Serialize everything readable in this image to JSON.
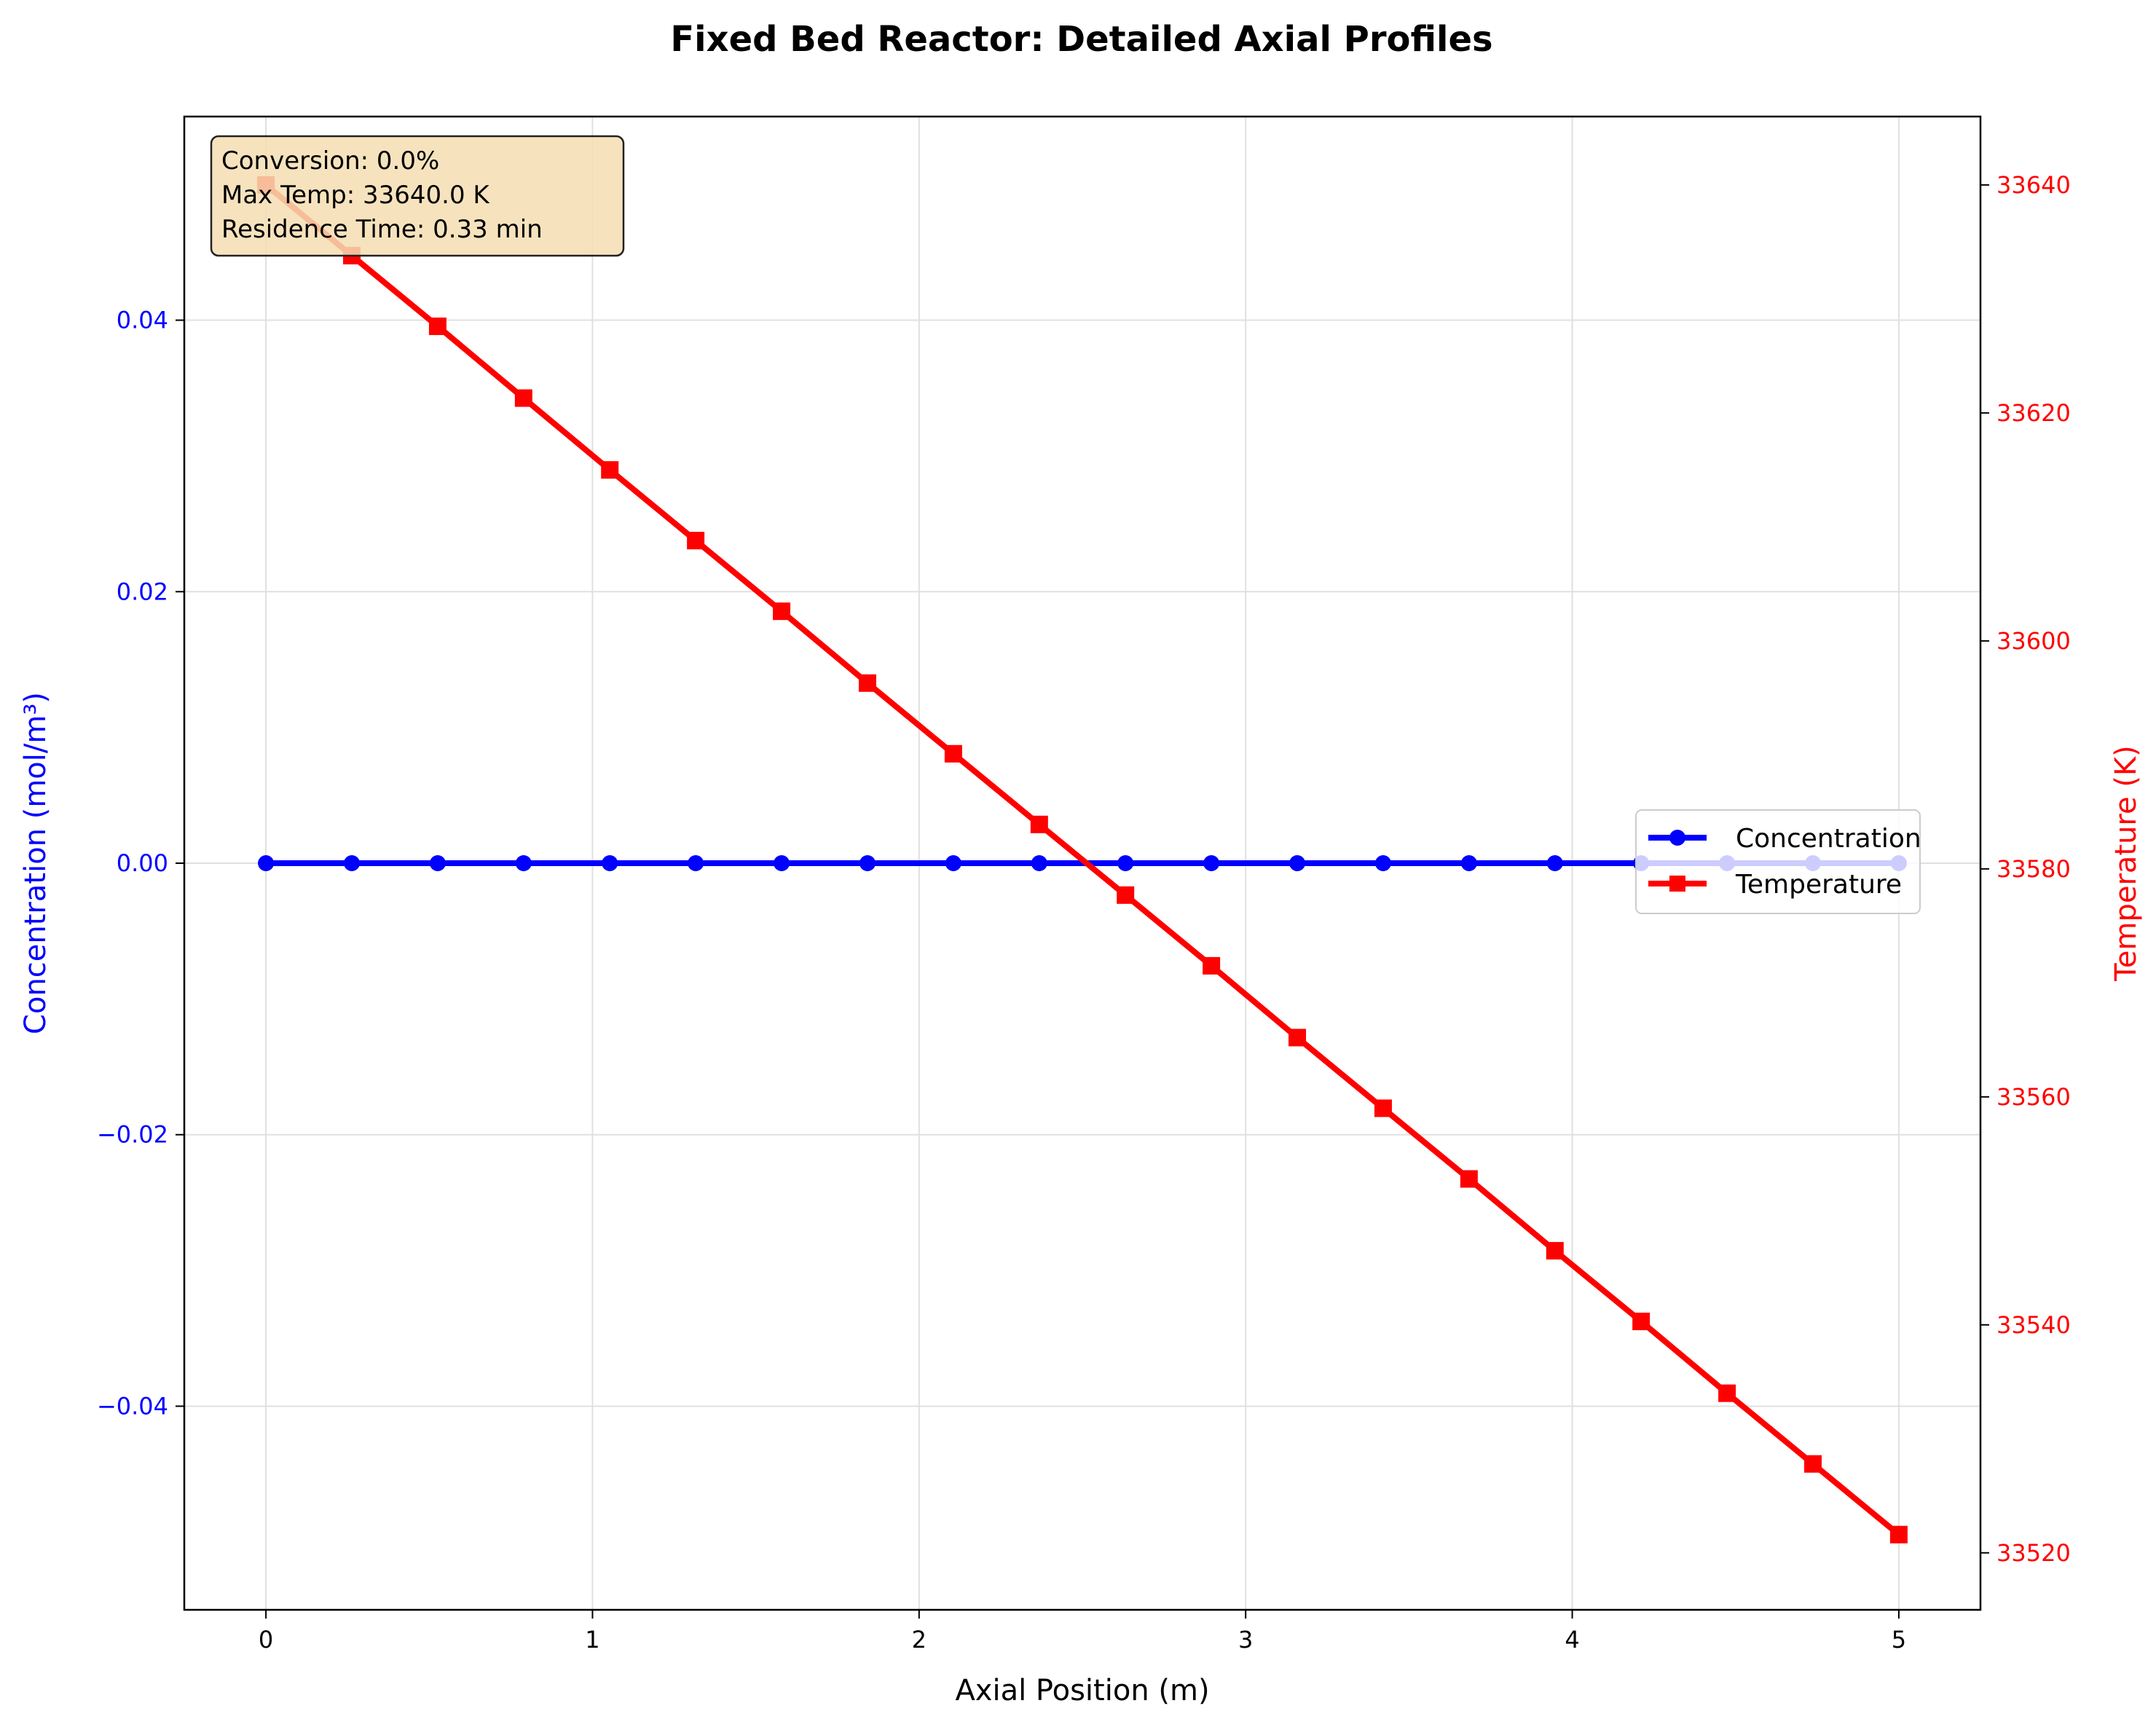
{
  "chart_data": {
    "type": "line",
    "title": "Fixed Bed Reactor: Detailed Axial Profiles",
    "xlabel": "Axial Position (m)",
    "ylabel_left": "Concentration (mol/m³)",
    "ylabel_right": "Temperature (K)",
    "xlim": [
      -0.25,
      5.25
    ],
    "ylim_left": [
      -0.055,
      0.055
    ],
    "ylim_right": [
      33515,
      33646
    ],
    "x_ticks": [
      "0",
      "1",
      "2",
      "3",
      "4",
      "5"
    ],
    "y_left_ticks": [
      "−0.04",
      "−0.02",
      "0.00",
      "0.02",
      "0.04"
    ],
    "y_right_ticks": [
      "33520",
      "33540",
      "33560",
      "33580",
      "33600",
      "33620",
      "33640"
    ],
    "grid": true,
    "legend_position": "center-right",
    "x": [
      0,
      0.263,
      0.526,
      0.789,
      1.053,
      1.316,
      1.579,
      1.842,
      2.105,
      2.368,
      2.632,
      2.895,
      3.158,
      3.421,
      3.684,
      3.947,
      4.211,
      4.474,
      4.737,
      5.0
    ],
    "series": [
      {
        "name": "Concentration",
        "axis": "left",
        "color": "#0000ff",
        "marker": "circle",
        "values": [
          0,
          0,
          0,
          0,
          0,
          0,
          0,
          0,
          0,
          0,
          0,
          0,
          0,
          0,
          0,
          0,
          0,
          0,
          0,
          0
        ]
      },
      {
        "name": "Temperature",
        "axis": "right",
        "color": "#ff0000",
        "marker": "square",
        "values": [
          33640.0,
          33633.8,
          33627.6,
          33621.3,
          33615.0,
          33608.8,
          33602.6,
          33596.3,
          33590.1,
          33583.9,
          33577.7,
          33571.5,
          33565.2,
          33559.0,
          33552.8,
          33546.5,
          33540.3,
          33534.0,
          33527.8,
          33521.6
        ]
      }
    ],
    "annotation": [
      "Conversion: 0.0%",
      "Max Temp: 33640.0 K",
      "Residence Time: 0.33 min"
    ]
  },
  "colors": {
    "left_axis": "#0000ff",
    "right_axis": "#ff0000",
    "grid": "#e0e0e0",
    "annotation_bg": "#f5deb3"
  }
}
